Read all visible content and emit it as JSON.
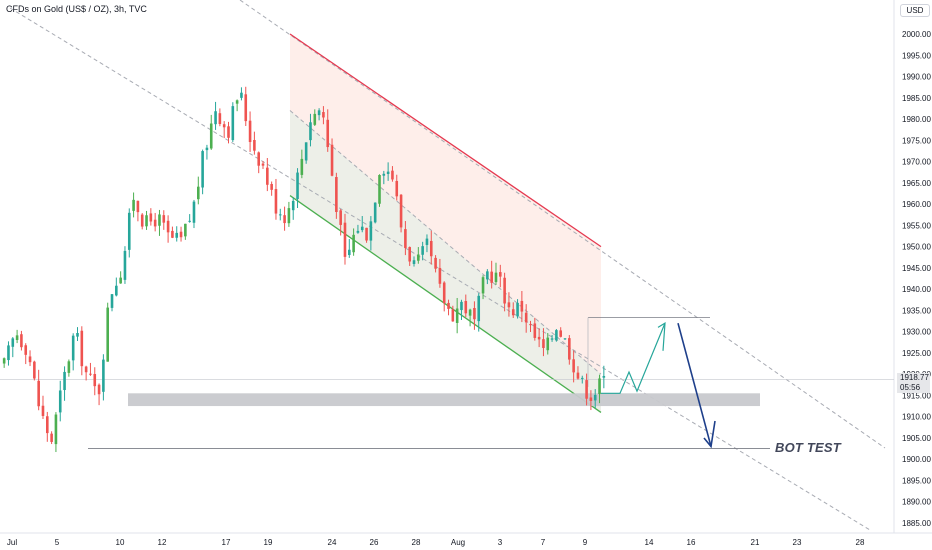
{
  "header": {
    "symbol_title": "CFDs on Gold (US$ / OZ), 3h, TVC",
    "currency": "USD"
  },
  "price_tag": {
    "price": "1918.77",
    "countdown": "05:56"
  },
  "annotation": {
    "label": "BOT TEST"
  },
  "colors": {
    "up_candle": "#26a69a",
    "up_candle_green": "#4caf50",
    "down_candle": "#ef5350",
    "upper_channel": "#e53950",
    "lower_channel": "#4caf50",
    "support_zone": "#c8c9cd",
    "projection_up": "#26a69a",
    "projection_down": "#1e3f8a"
  },
  "chart_data": {
    "type": "candlestick",
    "title": "CFDs on Gold (US$ / OZ), 3h, TVC",
    "ylim": [
      1882,
      2008
    ],
    "y_ticks": [
      1885,
      1890,
      1895,
      1900,
      1905,
      1910,
      1915,
      1920,
      1925,
      1930,
      1935,
      1940,
      1945,
      1950,
      1955,
      1960,
      1965,
      1970,
      1975,
      1980,
      1985,
      1990,
      1995,
      2000
    ],
    "x_ticks": [
      "Jul",
      "5",
      "10",
      "12",
      "17",
      "19",
      "24",
      "26",
      "28",
      "Aug",
      "3",
      "7",
      "9",
      "14",
      "16",
      "21",
      "23",
      "28"
    ],
    "path_points": [
      [
        1922,
        1920
      ],
      [
        1930,
        1925
      ],
      [
        1926,
        1929
      ],
      [
        1912,
        1928
      ],
      [
        1904,
        1906
      ],
      [
        1918,
        1909
      ],
      [
        1930,
        1925
      ],
      [
        1920,
        1927
      ],
      [
        1915,
        1924
      ],
      [
        1939,
        1932
      ],
      [
        1945,
        1942
      ],
      [
        1962,
        1958
      ],
      [
        1955,
        1961
      ],
      [
        1957,
        1959
      ],
      [
        1952,
        1955
      ],
      [
        1951,
        1954
      ],
      [
        1958,
        1960
      ],
      [
        1972,
        1968
      ],
      [
        1983,
        1980
      ],
      [
        1977,
        1982
      ],
      [
        1987,
        1985
      ],
      [
        1975,
        1983
      ],
      [
        1969,
        1973
      ],
      [
        1960,
        1966
      ],
      [
        1957,
        1958
      ],
      [
        1967,
        1968
      ],
      [
        1980,
        1976
      ],
      [
        1983,
        1984
      ],
      [
        1965,
        1977
      ],
      [
        1946,
        1950
      ],
      [
        1955,
        1957
      ],
      [
        1953,
        1955
      ],
      [
        1970,
        1967
      ],
      [
        1967,
        1970
      ],
      [
        1951,
        1962
      ],
      [
        1945,
        1948
      ],
      [
        1950,
        1952
      ],
      [
        1940,
        1945
      ],
      [
        1934,
        1938
      ],
      [
        1937,
        1936
      ],
      [
        1932,
        1934
      ],
      [
        1944,
        1938
      ],
      [
        1943,
        1940
      ],
      [
        1935,
        1940
      ],
      [
        1936,
        1938
      ],
      [
        1929,
        1934
      ],
      [
        1925,
        1927
      ],
      [
        1932,
        1929
      ],
      [
        1926,
        1931
      ],
      [
        1918,
        1921
      ],
      [
        1915,
        1917
      ],
      [
        1918.77,
        1917
      ]
    ],
    "upper_channel": {
      "start": [
        "19",
        2000
      ],
      "end": [
        "9",
        1950
      ]
    },
    "lower_channel": {
      "start": [
        "19",
        1962
      ],
      "end": [
        "9",
        1911
      ]
    },
    "support_zone": {
      "from_price": 1912.5,
      "to_price": 1915.5,
      "x_start": "10",
      "x_end": "21"
    },
    "bot_test_level": 1902.5,
    "projection": [
      [
        "9",
        1915.5
      ],
      [
        "9+1",
        1920
      ],
      [
        "9+2",
        1916
      ],
      [
        "14",
        1933
      ],
      [
        "16",
        1903
      ]
    ],
    "current_price": 1918.77,
    "parallel_trend_upper": "upper dashed line from Jul top-left to 28 bottom-right",
    "grid": false,
    "legend": "none"
  }
}
